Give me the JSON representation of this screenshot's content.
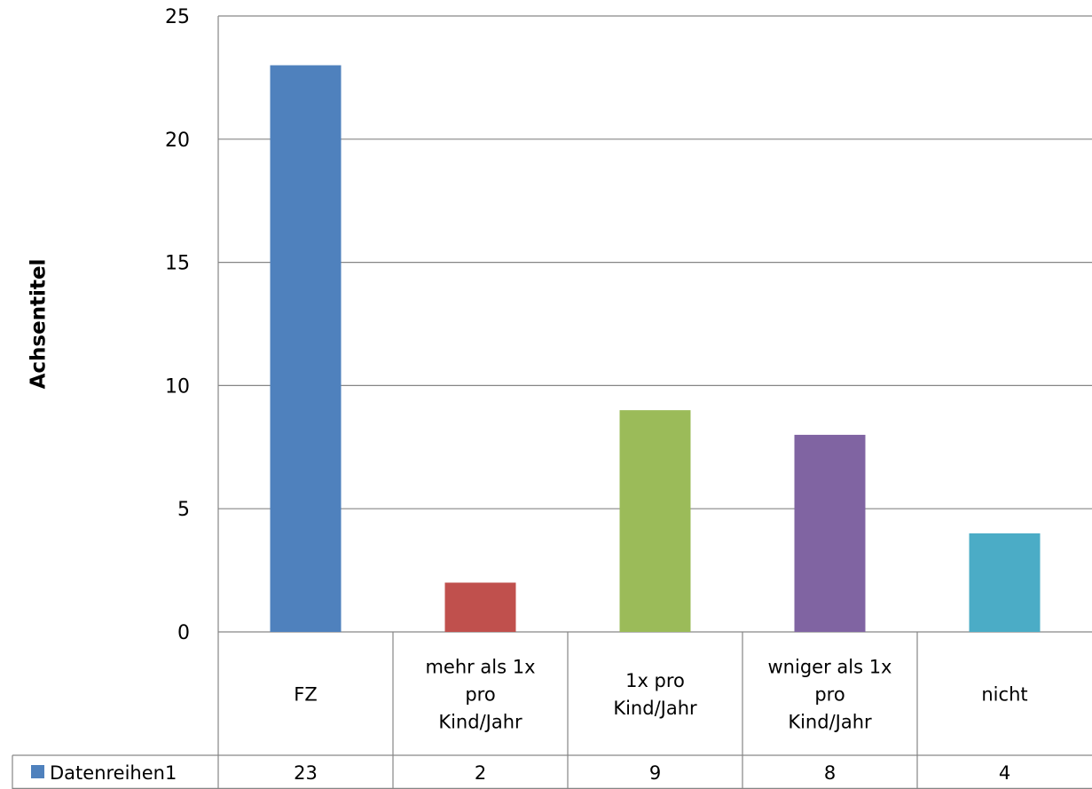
{
  "chart_data": {
    "type": "bar",
    "ylabel": "Achsentitel",
    "xlabel": "",
    "ylim": [
      0,
      25
    ],
    "yticks": [
      0,
      5,
      10,
      15,
      20,
      25
    ],
    "grid": true,
    "legend": "data-table",
    "categories": [
      [
        "FZ"
      ],
      [
        "mehr als 1x",
        "pro",
        "Kind/Jahr"
      ],
      [
        "1x pro",
        "Kind/Jahr"
      ],
      [
        "wniger als 1x",
        "pro",
        "Kind/Jahr"
      ],
      [
        "nicht"
      ]
    ],
    "series": [
      {
        "name": "Datenreihen1",
        "values": [
          23,
          2,
          9,
          8,
          4
        ]
      }
    ],
    "point_colors": [
      "#4f81bd",
      "#c0504d",
      "#9bbb59",
      "#8064a2",
      "#4bacc6"
    ],
    "legend_key_color": "#4f81bd"
  }
}
